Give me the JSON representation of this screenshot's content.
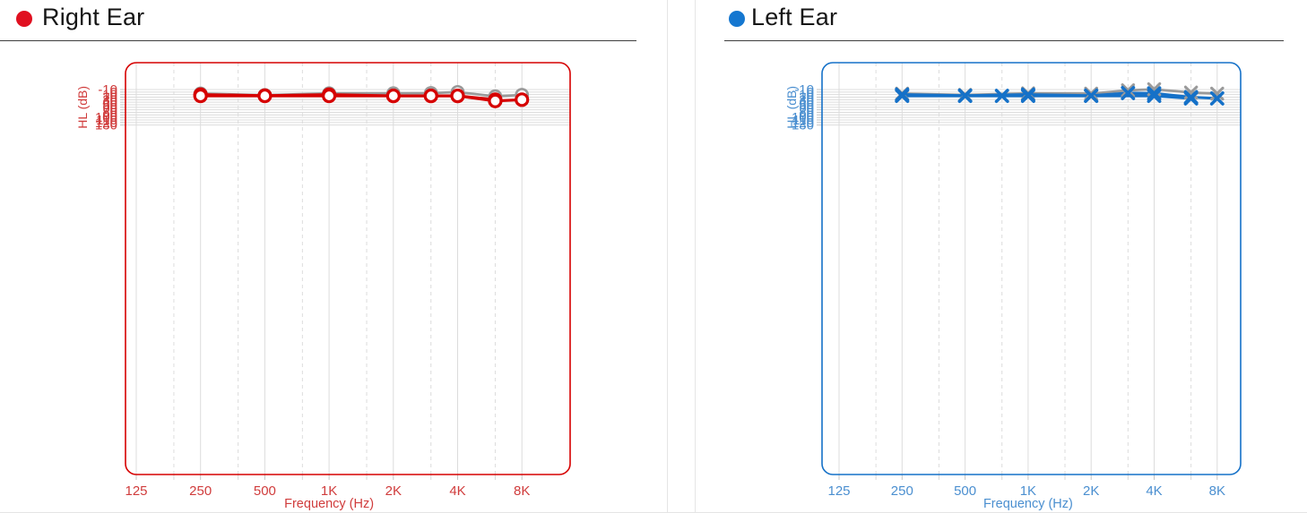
{
  "panels": [
    {
      "title": "Right Ear",
      "dot_color": "#e01020"
    },
    {
      "title": "Left Ear",
      "dot_color": "#1577d0"
    }
  ],
  "chart_data": [
    {
      "type": "line",
      "title": "Right Ear",
      "xlabel": "Frequency (Hz)",
      "ylabel": "HL (dB)",
      "x_ticks": [
        "125",
        "250",
        "500",
        "1K",
        "2K",
        "4K",
        "8K"
      ],
      "x_tick_freqs": [
        125,
        250,
        500,
        1000,
        2000,
        4000,
        8000
      ],
      "x_minor_freqs": [
        187.5,
        375,
        750,
        1500,
        3000,
        6000
      ],
      "ylim": [
        -10,
        130
      ],
      "y_step": 10,
      "y_axis_inverted": true,
      "grid": true,
      "legend": "none",
      "accent": "#d60000",
      "label_color": "#d03c3c",
      "grid_color": "#dcdcdc",
      "series": [
        {
          "name": "previous-result-right",
          "color": "#9a9a9a",
          "marker": "circle",
          "width": 2.7,
          "points": [
            [
              250,
              6
            ],
            [
              500,
              12
            ],
            [
              1000,
              5
            ],
            [
              2000,
              5
            ],
            [
              3000,
              4
            ],
            [
              4000,
              0
            ],
            [
              6000,
              17
            ],
            [
              8000,
              11
            ]
          ]
        },
        {
          "name": "threshold-right-1",
          "color": "#d60000",
          "marker": "circle",
          "width": 3.2,
          "points": [
            [
              250,
              10
            ],
            [
              500,
              14
            ],
            [
              1000,
              10
            ],
            [
              2000,
              15
            ],
            [
              3000,
              15
            ],
            [
              4000,
              15
            ],
            [
              6000,
              30
            ]
          ]
        },
        {
          "name": "threshold-right-2",
          "color": "#d60000",
          "marker": "circle",
          "width": 3.2,
          "points": [
            [
              250,
              15
            ],
            [
              500,
              15
            ],
            [
              1000,
              15
            ],
            [
              2000,
              15
            ],
            [
              3000,
              15
            ],
            [
              4000,
              15
            ],
            [
              6000,
              35
            ],
            [
              8000,
              30
            ]
          ]
        }
      ]
    },
    {
      "type": "line",
      "title": "Left Ear",
      "xlabel": "Frequency (Hz)",
      "ylabel": "HL (dB)",
      "x_ticks": [
        "125",
        "250",
        "500",
        "1K",
        "2K",
        "4K",
        "8K"
      ],
      "x_tick_freqs": [
        125,
        250,
        500,
        1000,
        2000,
        4000,
        8000
      ],
      "x_minor_freqs": [
        187.5,
        375,
        750,
        1500,
        3000,
        6000
      ],
      "ylim": [
        -10,
        130
      ],
      "y_step": 10,
      "y_axis_inverted": true,
      "grid": true,
      "legend": "none",
      "accent": "#1571c8",
      "label_color": "#4b8fd0",
      "grid_color": "#dcdcdc",
      "series": [
        {
          "name": "previous-result-left",
          "color": "#9a9a9a",
          "marker": "x",
          "width": 2.7,
          "points": [
            [
              250,
              6
            ],
            [
              500,
              11
            ],
            [
              1000,
              5
            ],
            [
              2000,
              6
            ],
            [
              3000,
              -7
            ],
            [
              4000,
              -11
            ],
            [
              6000,
              2
            ],
            [
              8000,
              6
            ]
          ]
        },
        {
          "name": "threshold-left-1",
          "color": "#1571c8",
          "marker": "x",
          "width": 3.1,
          "points": [
            [
              250,
              10
            ],
            [
              500,
              14
            ],
            [
              1000,
              10
            ],
            [
              2000,
              14
            ],
            [
              3000,
              4
            ],
            [
              4000,
              5
            ],
            [
              6000,
              20
            ],
            [
              8000,
              25
            ]
          ]
        },
        {
          "name": "threshold-left-2",
          "color": "#1571c8",
          "marker": "x",
          "width": 3.1,
          "points": [
            [
              250,
              15
            ],
            [
              500,
              15
            ],
            [
              750,
              15
            ],
            [
              1000,
              15
            ],
            [
              2000,
              15
            ],
            [
              4000,
              15
            ],
            [
              6000,
              25
            ]
          ]
        }
      ]
    }
  ]
}
